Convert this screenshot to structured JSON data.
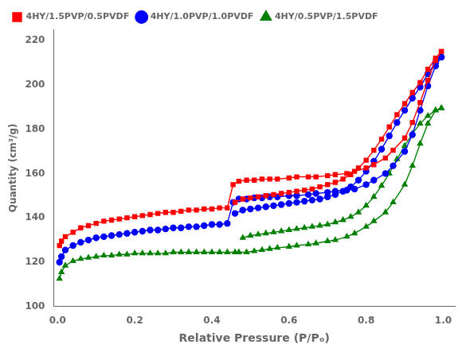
{
  "chart_data": {
    "type": "line",
    "xlabel": "Relative Pressure (P/Pₒ)",
    "ylabel": "Quantity (cm³/g)",
    "xlim": [
      -0.01,
      1.03
    ],
    "ylim": [
      100,
      225
    ],
    "xticks": [
      {
        "value": 0.0,
        "label": "0.0"
      },
      0.2,
      0.4,
      0.6,
      0.8,
      {
        "value": 1.0,
        "label": "1.0"
      }
    ],
    "yticks": [
      100,
      120,
      140,
      160,
      180,
      200,
      220
    ],
    "grid": false,
    "legend": "upper left",
    "series": [
      {
        "name": "4HY/1.5PVP/0.5PVDF",
        "color": "red",
        "marker": "square",
        "x": [
          0.005,
          0.01,
          0.02,
          0.04,
          0.06,
          0.08,
          0.1,
          0.12,
          0.14,
          0.16,
          0.18,
          0.2,
          0.22,
          0.24,
          0.26,
          0.28,
          0.3,
          0.32,
          0.34,
          0.36,
          0.38,
          0.4,
          0.42,
          0.44,
          0.455,
          0.47,
          0.49,
          0.51,
          0.53,
          0.55,
          0.57,
          0.6,
          0.62,
          0.65,
          0.67,
          0.7,
          0.72,
          0.75,
          0.77,
          0.8,
          0.82,
          0.85,
          0.87,
          0.9,
          0.92,
          0.94,
          0.96,
          0.98,
          0.995
        ],
        "values": [
          127.5,
          129.5,
          131.5,
          133.5,
          135.5,
          136.5,
          137.5,
          138.5,
          139.0,
          139.5,
          140.0,
          140.5,
          141.0,
          141.5,
          142.0,
          142.5,
          142.5,
          143.0,
          143.5,
          143.5,
          144.0,
          144.0,
          144.5,
          144.5,
          155.0,
          156.5,
          157.0,
          157.0,
          157.5,
          157.5,
          157.5,
          158.0,
          158.5,
          158.5,
          158.5,
          159.0,
          159.5,
          160.0,
          161.0,
          162.5,
          164.0,
          167.0,
          170.5,
          176.0,
          183.0,
          192.0,
          202.0,
          211.0,
          215.0
        ]
      },
      {
        "color": "red",
        "marker": "square",
        "x": [
          0.995,
          0.98,
          0.96,
          0.94,
          0.92,
          0.9,
          0.88,
          0.86,
          0.84,
          0.82,
          0.8,
          0.78,
          0.76,
          0.74,
          0.72,
          0.7,
          0.68,
          0.66,
          0.64,
          0.62,
          0.6,
          0.58,
          0.56,
          0.54,
          0.52,
          0.5,
          0.48,
          0.46
        ],
        "values": [
          215.0,
          212.0,
          207.0,
          201.0,
          196.5,
          191.5,
          186.5,
          181.0,
          175.5,
          170.5,
          166.0,
          162.5,
          159.5,
          157.5,
          156.0,
          155.0,
          154.0,
          153.0,
          152.5,
          152.0,
          151.5,
          151.0,
          150.5,
          150.0,
          149.5,
          149.0,
          148.5,
          147.0
        ]
      },
      {
        "name": "4HY/1.0PVP/1.0PVDF",
        "color": "blue",
        "marker": "circle",
        "x": [
          0.005,
          0.01,
          0.02,
          0.04,
          0.06,
          0.08,
          0.1,
          0.12,
          0.14,
          0.16,
          0.18,
          0.2,
          0.22,
          0.24,
          0.26,
          0.28,
          0.3,
          0.32,
          0.34,
          0.36,
          0.38,
          0.4,
          0.42,
          0.44,
          0.455,
          0.47,
          0.49,
          0.51,
          0.53,
          0.55,
          0.57,
          0.6,
          0.62,
          0.65,
          0.67,
          0.7,
          0.72,
          0.75,
          0.77,
          0.8,
          0.82,
          0.85,
          0.87,
          0.9,
          0.92,
          0.94,
          0.96,
          0.98,
          0.995
        ],
        "values": [
          120.0,
          122.5,
          125.5,
          127.5,
          129.0,
          130.0,
          131.0,
          131.5,
          132.0,
          132.5,
          133.0,
          133.5,
          134.0,
          134.5,
          134.5,
          135.0,
          135.5,
          135.5,
          136.0,
          136.0,
          136.5,
          137.0,
          137.0,
          137.5,
          147.0,
          148.5,
          148.5,
          149.0,
          149.0,
          149.5,
          149.5,
          150.0,
          150.0,
          150.5,
          151.0,
          151.5,
          152.0,
          152.5,
          153.0,
          155.0,
          157.0,
          160.0,
          163.5,
          170.0,
          177.5,
          188.5,
          199.5,
          208.5,
          212.5
        ]
      },
      {
        "color": "blue",
        "marker": "circle",
        "x": [
          0.995,
          0.98,
          0.96,
          0.94,
          0.92,
          0.9,
          0.88,
          0.86,
          0.84,
          0.82,
          0.8,
          0.78,
          0.76,
          0.74,
          0.72,
          0.7,
          0.68,
          0.66,
          0.64,
          0.62,
          0.6,
          0.58,
          0.56,
          0.54,
          0.52,
          0.5,
          0.48,
          0.46
        ],
        "values": [
          212.5,
          210.0,
          205.0,
          199.0,
          194.0,
          188.5,
          183.0,
          177.0,
          171.0,
          165.5,
          161.0,
          157.0,
          154.0,
          152.0,
          150.5,
          149.5,
          148.5,
          148.0,
          147.5,
          147.0,
          146.5,
          146.0,
          145.5,
          145.0,
          144.5,
          144.0,
          143.5,
          142.0
        ]
      },
      {
        "name": "4HY/0.5PVP/1.5PVDF",
        "color": "green",
        "marker": "triangle",
        "x": [
          0.005,
          0.01,
          0.02,
          0.04,
          0.06,
          0.08,
          0.1,
          0.12,
          0.14,
          0.16,
          0.18,
          0.2,
          0.22,
          0.24,
          0.26,
          0.28,
          0.3,
          0.32,
          0.34,
          0.36,
          0.38,
          0.4,
          0.42,
          0.44,
          0.46,
          0.47,
          0.49,
          0.51,
          0.53,
          0.55,
          0.57,
          0.6,
          0.62,
          0.65,
          0.67,
          0.7,
          0.72,
          0.75,
          0.77,
          0.8,
          0.82,
          0.85,
          0.87,
          0.9,
          0.92,
          0.94,
          0.96,
          0.98,
          0.995
        ],
        "values": [
          112.5,
          115.5,
          118.5,
          120.5,
          121.5,
          122.0,
          122.5,
          123.0,
          123.0,
          123.5,
          123.5,
          124.0,
          124.0,
          124.0,
          124.0,
          124.0,
          124.5,
          124.5,
          124.5,
          124.5,
          124.5,
          124.5,
          124.5,
          124.5,
          124.5,
          124.5,
          124.5,
          125.0,
          125.5,
          126.0,
          126.5,
          127.0,
          127.5,
          128.0,
          128.5,
          129.5,
          130.0,
          131.5,
          133.0,
          136.0,
          138.5,
          142.5,
          147.0,
          155.0,
          163.5,
          173.5,
          182.5,
          188.5,
          189.5
        ]
      },
      {
        "color": "green",
        "marker": "triangle",
        "x": [
          0.995,
          0.98,
          0.96,
          0.94,
          0.92,
          0.9,
          0.88,
          0.86,
          0.84,
          0.82,
          0.8,
          0.78,
          0.76,
          0.74,
          0.72,
          0.7,
          0.68,
          0.66,
          0.64,
          0.62,
          0.6,
          0.58,
          0.56,
          0.54,
          0.52,
          0.5,
          0.48
        ],
        "values": [
          189.5,
          188.5,
          186.0,
          182.5,
          178.0,
          172.5,
          166.5,
          160.0,
          154.5,
          149.5,
          145.5,
          142.5,
          140.5,
          139.0,
          138.0,
          137.0,
          136.5,
          136.0,
          135.5,
          135.0,
          134.5,
          134.0,
          133.5,
          133.0,
          132.5,
          132.0,
          131.0
        ]
      }
    ]
  }
}
